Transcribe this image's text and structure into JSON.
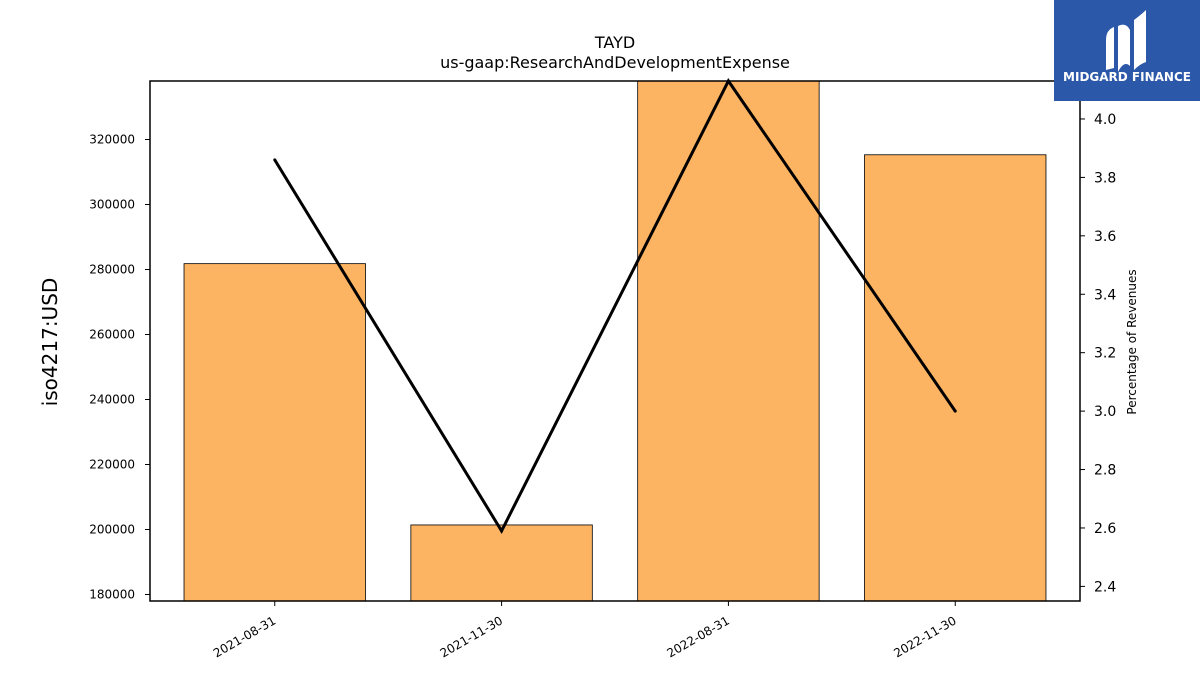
{
  "chart_data": {
    "type": "bar",
    "title": "TAYD",
    "subtitle": "us-gaap:ResearchAndDevelopmentExpense",
    "ylabel": "iso4217:USD",
    "y2label": "Percentage of Revenues",
    "categories": [
      "2021-08-31",
      "2021-11-30",
      "2022-08-31",
      "2022-11-30"
    ],
    "series": [
      {
        "values": [
          281800,
          201400,
          338000,
          315300
        ],
        "color": "#fdb462",
        "axis": "left",
        "kind": "bar"
      },
      {
        "values": [
          3.86,
          2.59,
          4.13,
          3.0
        ],
        "color": "#000000",
        "axis": "right",
        "kind": "line"
      }
    ],
    "ylim": [
      178000,
      338000
    ],
    "y2lim": [
      2.35,
      4.13
    ],
    "yticks": [
      "180000",
      "200000",
      "220000",
      "240000",
      "260000",
      "280000",
      "300000",
      "320000"
    ],
    "y2ticks": [
      "2.4",
      "2.6",
      "2.8",
      "3.0",
      "3.2",
      "3.4",
      "3.6",
      "3.8",
      "4.0"
    ],
    "grid": false,
    "legend": "none"
  },
  "logo": {
    "text": "MIDGARD FINANCE",
    "bg_color": "#2b58a8"
  }
}
